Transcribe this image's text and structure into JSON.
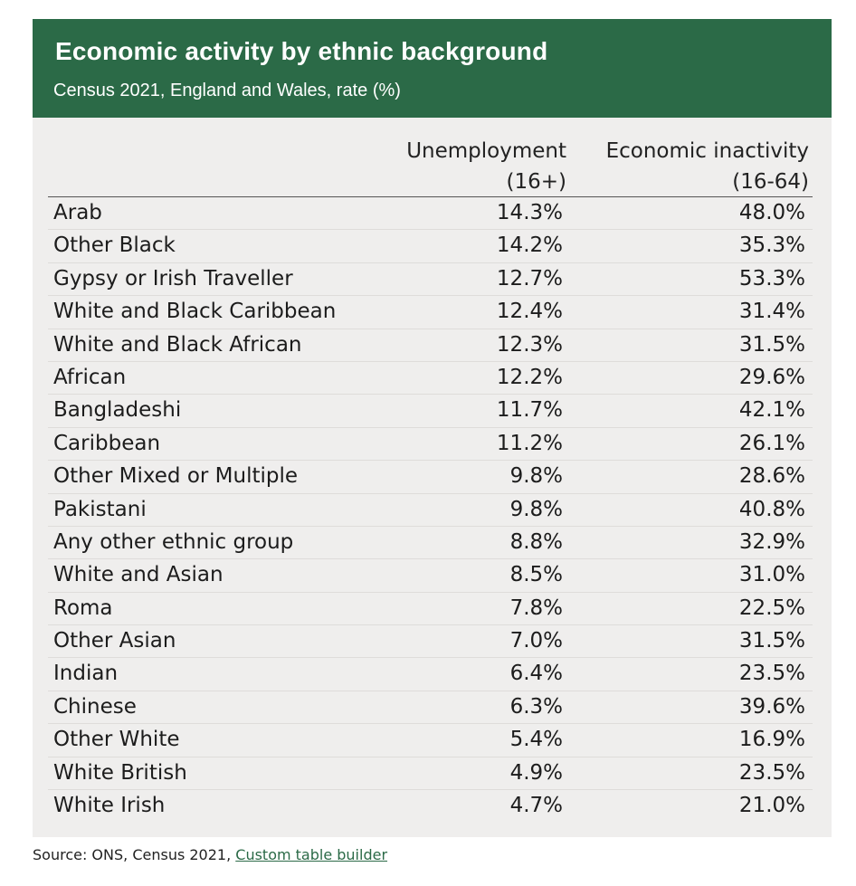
{
  "header": {
    "title": "Economic activity by ethnic background",
    "subtitle": "Census 2021, England and Wales, rate (%)"
  },
  "columns": {
    "unemployment": {
      "line1": "Unemployment",
      "line2": "(16+)"
    },
    "inactivity": {
      "line1": "Economic inactivity",
      "line2": "(16-64)"
    }
  },
  "rows": [
    {
      "name": "Arab",
      "unemployment": "14.3%",
      "inactivity": "48.0%"
    },
    {
      "name": "Other Black",
      "unemployment": "14.2%",
      "inactivity": "35.3%"
    },
    {
      "name": "Gypsy or Irish Traveller",
      "unemployment": "12.7%",
      "inactivity": "53.3%"
    },
    {
      "name": "White and Black Caribbean",
      "unemployment": "12.4%",
      "inactivity": "31.4%"
    },
    {
      "name": "White and Black African",
      "unemployment": "12.3%",
      "inactivity": "31.5%"
    },
    {
      "name": "African",
      "unemployment": "12.2%",
      "inactivity": "29.6%"
    },
    {
      "name": "Bangladeshi",
      "unemployment": "11.7%",
      "inactivity": "42.1%"
    },
    {
      "name": "Caribbean",
      "unemployment": "11.2%",
      "inactivity": "26.1%"
    },
    {
      "name": "Other Mixed or Multiple",
      "unemployment": "9.8%",
      "inactivity": "28.6%"
    },
    {
      "name": "Pakistani",
      "unemployment": "9.8%",
      "inactivity": "40.8%"
    },
    {
      "name": "Any other ethnic group",
      "unemployment": "8.8%",
      "inactivity": "32.9%"
    },
    {
      "name": "White and Asian",
      "unemployment": "8.5%",
      "inactivity": "31.0%"
    },
    {
      "name": "Roma",
      "unemployment": "7.8%",
      "inactivity": "22.5%"
    },
    {
      "name": "Other Asian",
      "unemployment": "7.0%",
      "inactivity": "31.5%"
    },
    {
      "name": "Indian",
      "unemployment": "6.4%",
      "inactivity": "23.5%"
    },
    {
      "name": "Chinese",
      "unemployment": "6.3%",
      "inactivity": "39.6%"
    },
    {
      "name": "Other White",
      "unemployment": "5.4%",
      "inactivity": "16.9%"
    },
    {
      "name": "White British",
      "unemployment": "4.9%",
      "inactivity": "23.5%"
    },
    {
      "name": "White Irish",
      "unemployment": "4.7%",
      "inactivity": "21.0%"
    }
  ],
  "footer": {
    "source_prefix": "Source: ONS, Census 2021, ",
    "source_link": "Custom table builder"
  },
  "colors": {
    "header_bg": "#2b6a47",
    "card_bg": "#efeeed",
    "link": "#2b6a47"
  }
}
